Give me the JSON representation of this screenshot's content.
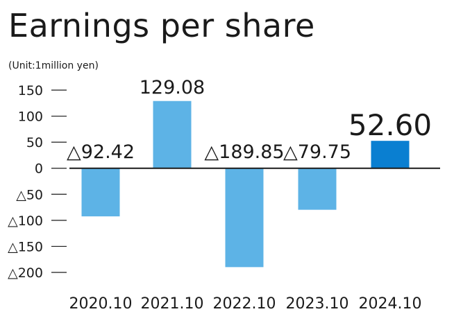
{
  "chart_data": {
    "type": "bar",
    "title": "Earnings per share",
    "unit_note": "(Unit:1million yen)",
    "xlabel": "",
    "ylabel": "",
    "ylim": [
      -200,
      150
    ],
    "yticks": [
      150,
      100,
      50,
      0,
      -50,
      -100,
      -150,
      -200
    ],
    "ytick_labels": [
      "150",
      "100",
      "50",
      "0",
      "△50",
      "△100",
      "△150",
      "△200"
    ],
    "categories": [
      "2020.10",
      "2021.10",
      "2022.10",
      "2023.10",
      "2024.10"
    ],
    "values": [
      -92.42,
      129.08,
      -189.85,
      -79.75,
      52.6
    ],
    "data_labels": [
      "△92.42",
      "129.08",
      "△189.85",
      "△79.75",
      "52.60"
    ],
    "highlight_index": 4,
    "colors": {
      "bar": "#5db3e6",
      "highlight": "#0a7fd1",
      "axis": "#1a1a1a"
    },
    "grid": false,
    "legend": "none"
  }
}
